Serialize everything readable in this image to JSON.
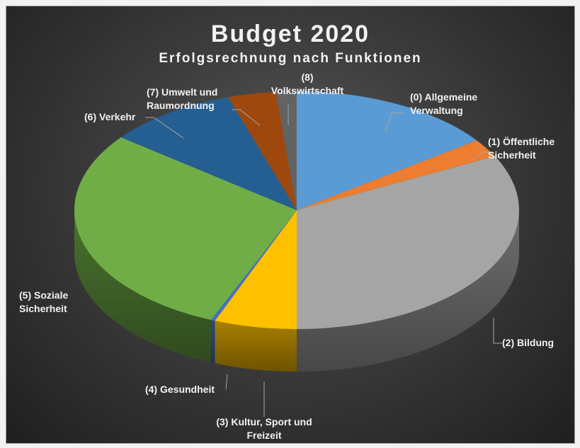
{
  "chart_data": {
    "type": "pie",
    "style": "3d",
    "title": "Budget 2020",
    "subtitle": "Erfolgsrechnung nach Funktionen",
    "legend": "none",
    "slices": [
      {
        "label": "(0) Allgemeine Verwaltung",
        "lines": [
          "(0) Allgemeine",
          "Verwaltung"
        ],
        "value": 15.0,
        "color": "#5b9bd5"
      },
      {
        "label": "(1) Öffentliche Sicherheit",
        "lines": [
          "(1) Öffentliche",
          "Sicherheit"
        ],
        "value": 2.5,
        "color": "#ed7d31"
      },
      {
        "label": "(2) Bildung",
        "lines": [
          "(2) Bildung"
        ],
        "value": 32.5,
        "color": "#a5a5a5"
      },
      {
        "label": "(3) Kultur, Sport und Freizeit",
        "lines": [
          "(3) Kultur, Sport und",
          "Freizeit"
        ],
        "value": 6.0,
        "color": "#ffc000"
      },
      {
        "label": "(4) Gesundheit",
        "lines": [
          "(4) Gesundheit"
        ],
        "value": 0.3,
        "color": "#4472c4"
      },
      {
        "label": "(5) Soziale Sicherheit",
        "lines": [
          "(5) Soziale",
          "Sicherheit"
        ],
        "value": 29.2,
        "color": "#70ad47"
      },
      {
        "label": "(6) Verkehr",
        "lines": [
          "(6) Verkehr"
        ],
        "value": 9.5,
        "color": "#255e91"
      },
      {
        "label": "(7) Umwelt und Raumordnung",
        "lines": [
          "(7) Umwelt und",
          "Raumordnung"
        ],
        "value": 3.5,
        "color": "#9e480e"
      },
      {
        "label": "(8) Volkswirtschaft",
        "lines": [
          "(8)",
          "Volkswirtschaft"
        ],
        "value": 1.5,
        "color": "#636363"
      }
    ]
  }
}
